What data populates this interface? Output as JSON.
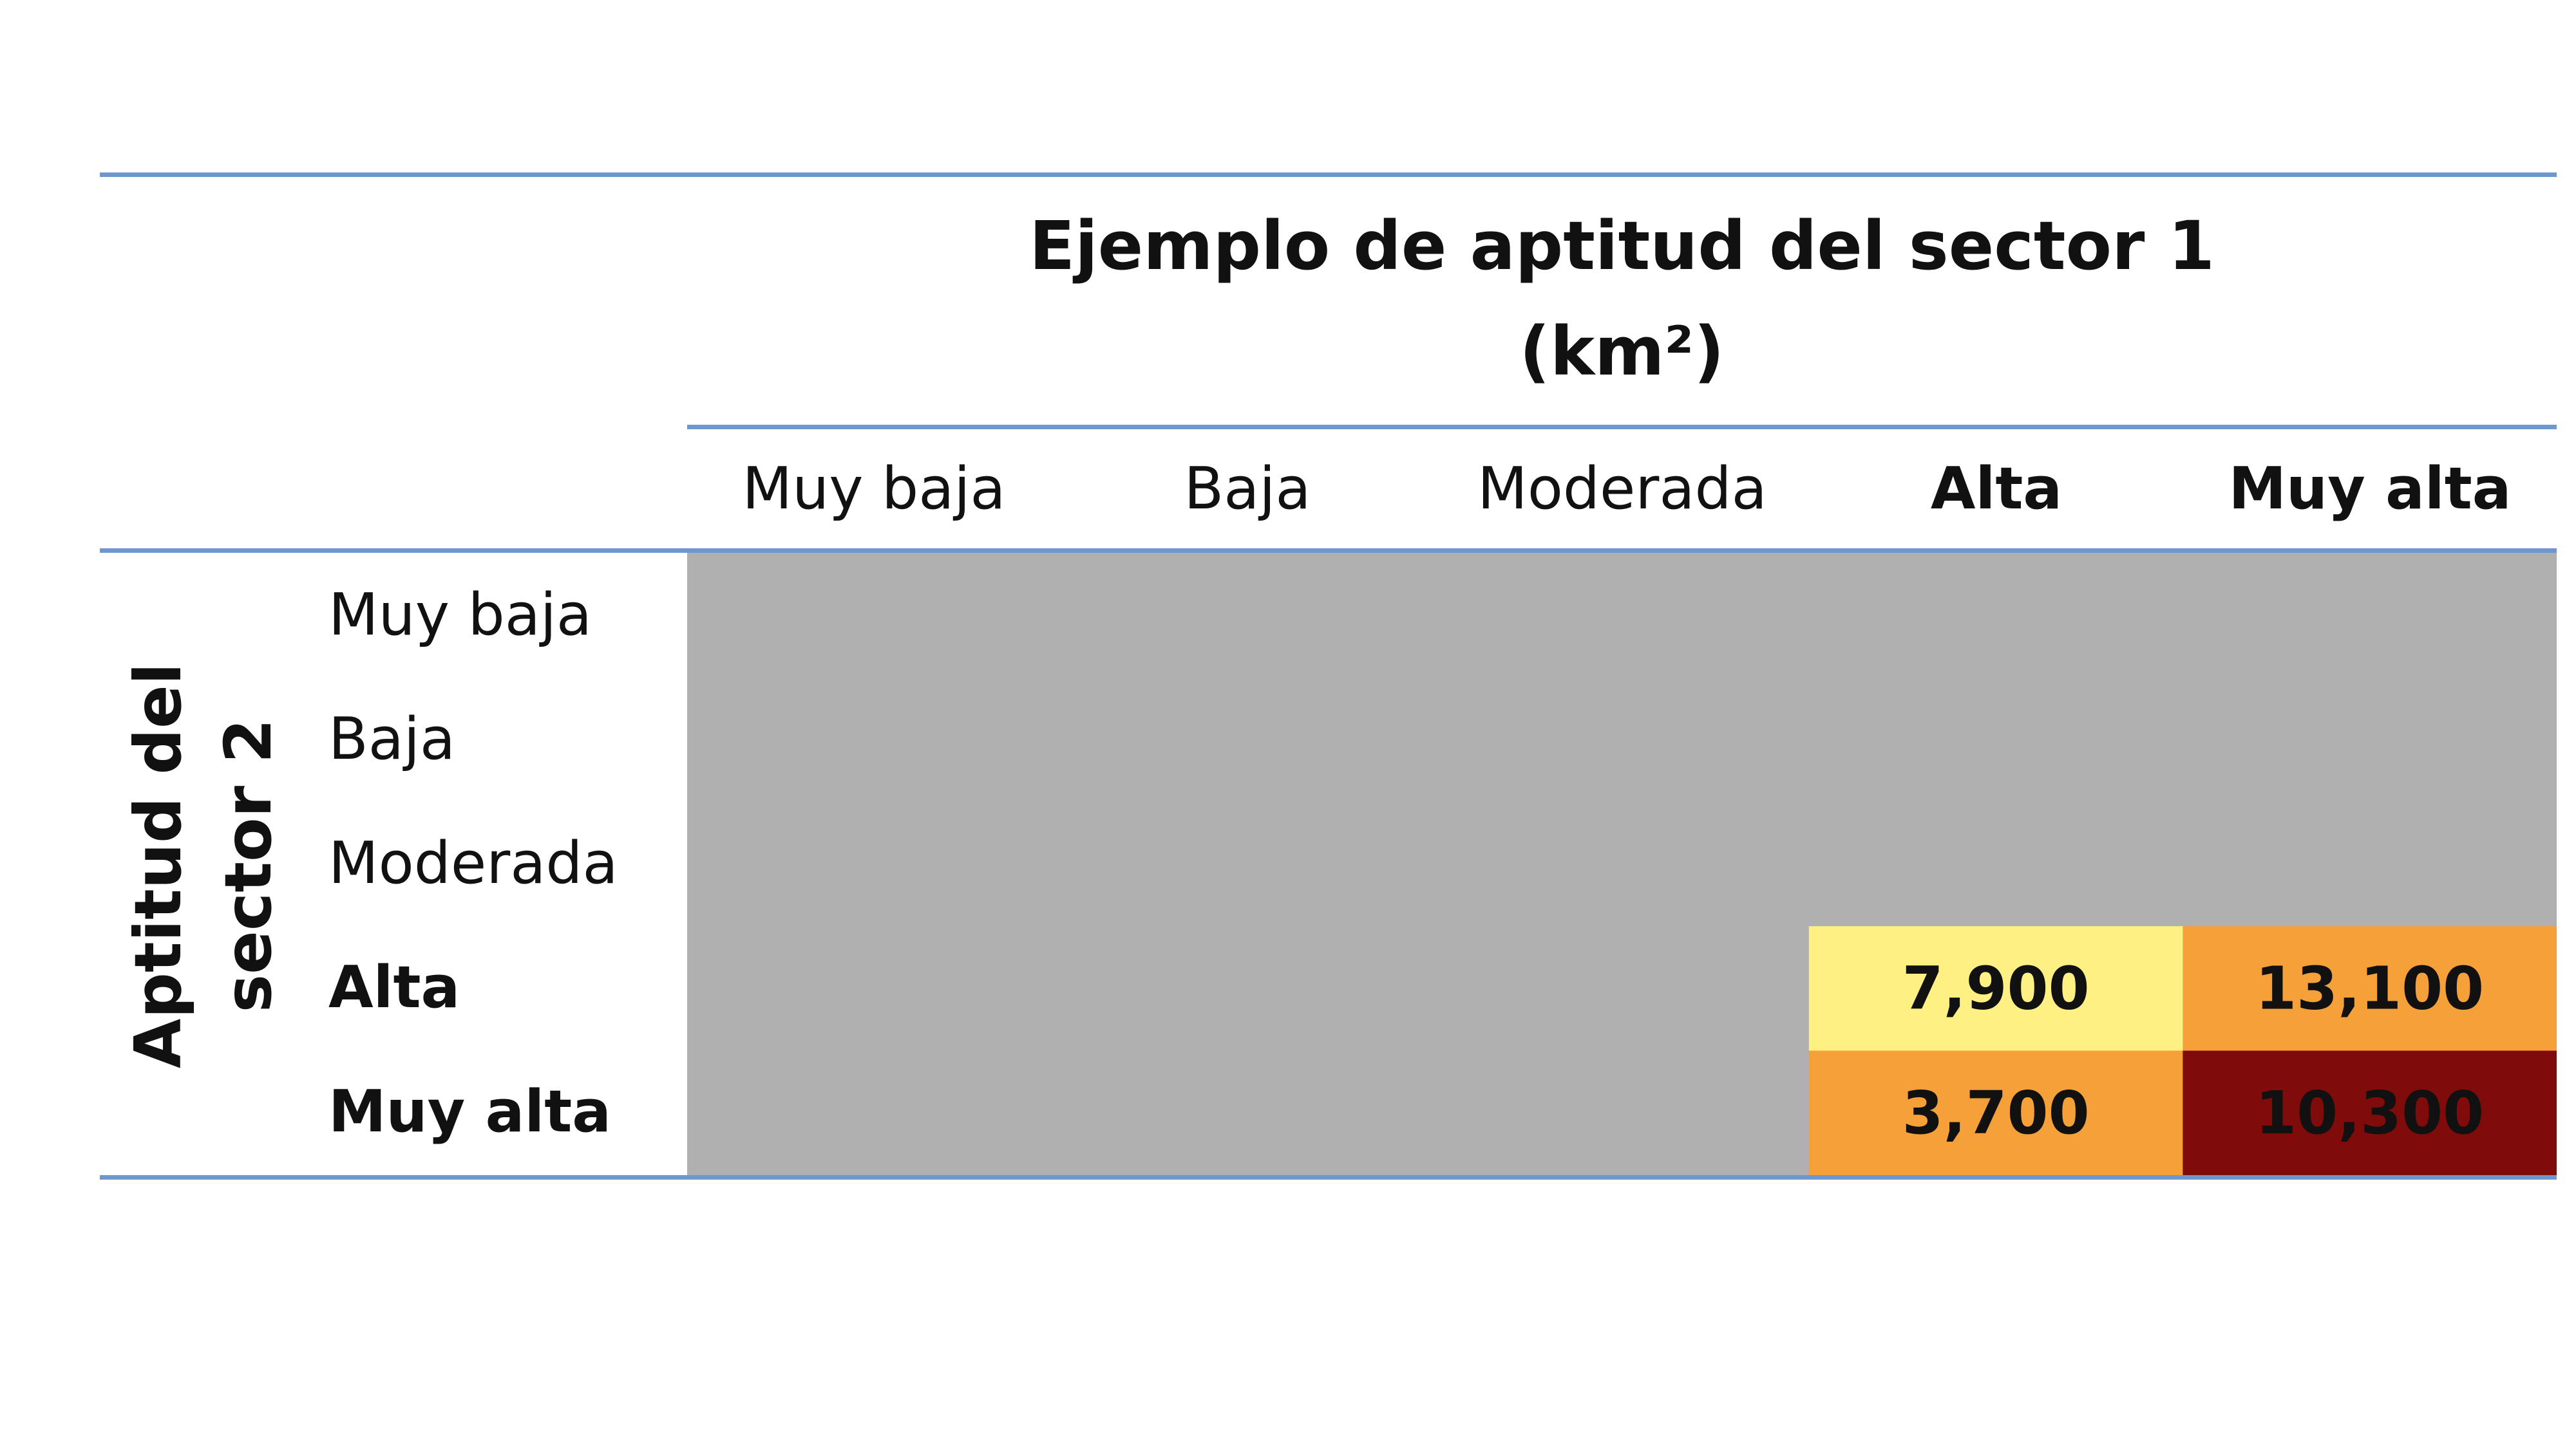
{
  "chart_data": {
    "type": "heatmap",
    "title": [
      "Ejemplo de aptitud del sector 1",
      "(km²)"
    ],
    "ylabel": [
      "Aptitud del",
      "sector 2"
    ],
    "columns": [
      "Muy baja",
      "Baja",
      "Moderada",
      "Alta",
      "Muy alta"
    ],
    "rows": [
      "Muy baja",
      "Baja",
      "Moderada",
      "Alta",
      "Muy alta"
    ],
    "bold_categories": [
      "Alta",
      "Muy alta"
    ],
    "cells": [
      {
        "row": "Alta",
        "col": "Alta",
        "value": 7900,
        "label": "7,900",
        "color": "#fef083"
      },
      {
        "row": "Alta",
        "col": "Muy alta",
        "value": 13100,
        "label": "13,100",
        "color": "#f5a038"
      },
      {
        "row": "Muy alta",
        "col": "Alta",
        "value": 3700,
        "label": "3,700",
        "color": "#f5a038"
      },
      {
        "row": "Muy alta",
        "col": "Muy alta",
        "value": 10300,
        "label": "10,300",
        "color": "#7f0b0b"
      }
    ],
    "empty_cell_color": "#b0b0b0",
    "rule_color": "#6f97cf"
  }
}
